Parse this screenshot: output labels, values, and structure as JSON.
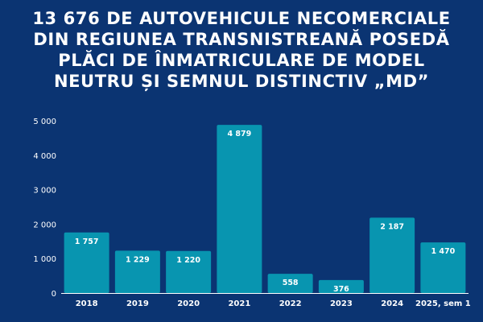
{
  "header": {
    "title_lines": [
      "13 676 DE AUTOVEHICULE NECOMERCIALE",
      "DIN REGIUNEA TRANSNISTREANĂ POSEDĂ",
      "PLĂCI DE ÎNMATRICULARE DE MODEL",
      "NEUTRU ȘI SEMNUL DISTINCTIV „MD”"
    ]
  },
  "colors": {
    "background": "#0b3472",
    "bar": "#0895b0",
    "axis": "#ffffff",
    "text": "#ffffff"
  },
  "chart_data": {
    "type": "bar",
    "title": "13 676 DE AUTOVEHICULE NECOMERCIALE DIN REGIUNEA TRANSNISTREANĂ POSEDĂ PLĂCI DE ÎNMATRICULARE DE MODEL NEUTRU ȘI SEMNUL DISTINCTIV „MD”",
    "xlabel": "",
    "ylabel": "",
    "categories": [
      "2018",
      "2019",
      "2020",
      "2021",
      "2022",
      "2023",
      "2024",
      "2025, sem 1"
    ],
    "values": [
      1757,
      1229,
      1220,
      4879,
      558,
      376,
      2187,
      1470
    ],
    "value_labels": [
      "1 757",
      "1 229",
      "1 220",
      "4 879",
      "558",
      "376",
      "2 187",
      "1 470"
    ],
    "ylim": [
      0,
      5000
    ],
    "yticks": [
      0,
      1000,
      2000,
      3000,
      4000,
      5000
    ],
    "ytick_labels": [
      "0",
      "1 000",
      "2 000",
      "3 000",
      "4 000",
      "5 000"
    ],
    "grid": false,
    "legend": "none"
  }
}
